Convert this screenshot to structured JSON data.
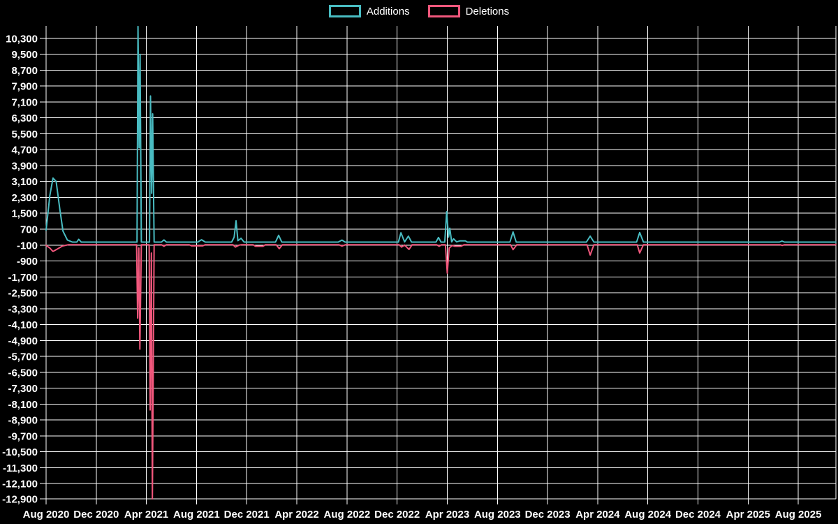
{
  "legend": {
    "items": [
      {
        "label": "Additions",
        "color": "#49bcc2"
      },
      {
        "label": "Deletions",
        "color": "#f1577c"
      }
    ]
  },
  "chart_data": {
    "type": "line",
    "title": "",
    "background_color": "#000000",
    "grid_color": "#ffffff",
    "text_color": "#ffffff",
    "grid": true,
    "legend_position": "top-center",
    "x_axis": {
      "tick_labels": [
        "Aug 2020",
        "Dec 2020",
        "Apr 2021",
        "Aug 2021",
        "Dec 2021",
        "Apr 2022",
        "Aug 2022",
        "Dec 2022",
        "Apr 2023",
        "Aug 2023",
        "Dec 2023",
        "Apr 2024",
        "Aug 2024",
        "Dec 2024",
        "Apr 2025",
        "Aug 2025"
      ],
      "tick_interval_months": 4,
      "range_months": [
        0,
        63
      ]
    },
    "y_axis": {
      "tick_labels": [
        "10,300",
        "9,500",
        "8,700",
        "7,900",
        "7,100",
        "6,300",
        "5,500",
        "4,700",
        "3,900",
        "3,100",
        "2,300",
        "1,500",
        "700",
        "-100",
        "-900",
        "-1,700",
        "-2,500",
        "-3,300",
        "-4,100",
        "-4,900",
        "-5,700",
        "-6,500",
        "-7,300",
        "-8,100",
        "-8,900",
        "-9,700",
        "-10,500",
        "-11,300",
        "-12,100",
        "-12,900"
      ],
      "tick_step": 800,
      "visible_value_range": [
        -12870,
        10930
      ]
    },
    "series": [
      {
        "name": "Additions",
        "color": "#49bcc2",
        "points": [
          [
            0,
            650
          ],
          [
            0.3,
            2400
          ],
          [
            0.55,
            3270
          ],
          [
            0.8,
            3100
          ],
          [
            1.1,
            1700
          ],
          [
            1.35,
            600
          ],
          [
            1.7,
            150
          ],
          [
            2.1,
            50
          ],
          [
            2.45,
            50
          ],
          [
            2.6,
            190
          ],
          [
            2.8,
            50
          ],
          [
            7.25,
            50
          ],
          [
            7.33,
            10900
          ],
          [
            7.42,
            4800
          ],
          [
            7.5,
            9500
          ],
          [
            7.6,
            50
          ],
          [
            8.25,
            50
          ],
          [
            8.33,
            7400
          ],
          [
            8.42,
            2500
          ],
          [
            8.5,
            6500
          ],
          [
            8.62,
            50
          ],
          [
            9.2,
            50
          ],
          [
            9.4,
            160
          ],
          [
            9.6,
            50
          ],
          [
            12.1,
            50
          ],
          [
            12.4,
            170
          ],
          [
            12.7,
            50
          ],
          [
            14.8,
            50
          ],
          [
            15.0,
            300
          ],
          [
            15.15,
            1120
          ],
          [
            15.3,
            120
          ],
          [
            15.55,
            240
          ],
          [
            15.8,
            50
          ],
          [
            18.3,
            50
          ],
          [
            18.55,
            390
          ],
          [
            18.8,
            50
          ],
          [
            23.3,
            50
          ],
          [
            23.6,
            150
          ],
          [
            23.85,
            50
          ],
          [
            28.1,
            50
          ],
          [
            28.3,
            520
          ],
          [
            28.6,
            60
          ],
          [
            28.9,
            350
          ],
          [
            29.15,
            50
          ],
          [
            31.1,
            50
          ],
          [
            31.3,
            280
          ],
          [
            31.5,
            50
          ],
          [
            31.8,
            50
          ],
          [
            31.95,
            1580
          ],
          [
            32.1,
            300
          ],
          [
            32.2,
            750
          ],
          [
            32.35,
            60
          ],
          [
            32.5,
            210
          ],
          [
            32.75,
            60
          ],
          [
            33.0,
            110
          ],
          [
            33.45,
            110
          ],
          [
            33.6,
            50
          ],
          [
            37.0,
            50
          ],
          [
            37.25,
            560
          ],
          [
            37.5,
            50
          ],
          [
            43.1,
            50
          ],
          [
            43.4,
            350
          ],
          [
            43.7,
            50
          ],
          [
            47.1,
            50
          ],
          [
            47.35,
            530
          ],
          [
            47.65,
            50
          ],
          [
            58.5,
            50
          ],
          [
            58.7,
            100
          ],
          [
            58.9,
            50
          ],
          [
            63,
            50
          ]
        ]
      },
      {
        "name": "Deletions",
        "color": "#f1577c",
        "points": [
          [
            0,
            -120
          ],
          [
            0.3,
            -250
          ],
          [
            0.55,
            -420
          ],
          [
            0.9,
            -300
          ],
          [
            1.3,
            -150
          ],
          [
            1.8,
            -80
          ],
          [
            7.22,
            -80
          ],
          [
            7.3,
            -3780
          ],
          [
            7.4,
            -250
          ],
          [
            7.48,
            -5340
          ],
          [
            7.6,
            -80
          ],
          [
            8.22,
            -80
          ],
          [
            8.3,
            -8400
          ],
          [
            8.4,
            -500
          ],
          [
            8.48,
            -12870
          ],
          [
            8.62,
            -80
          ],
          [
            9.2,
            -80
          ],
          [
            9.4,
            -160
          ],
          [
            9.6,
            -80
          ],
          [
            11.4,
            -80
          ],
          [
            11.6,
            -140
          ],
          [
            12.5,
            -140
          ],
          [
            12.7,
            -80
          ],
          [
            14.9,
            -80
          ],
          [
            15.1,
            -200
          ],
          [
            15.4,
            -100
          ],
          [
            15.6,
            -80
          ],
          [
            16.5,
            -80
          ],
          [
            16.7,
            -160
          ],
          [
            17.3,
            -160
          ],
          [
            17.5,
            -80
          ],
          [
            18.35,
            -80
          ],
          [
            18.6,
            -280
          ],
          [
            18.85,
            -80
          ],
          [
            23.35,
            -80
          ],
          [
            23.6,
            -150
          ],
          [
            23.9,
            -80
          ],
          [
            28.15,
            -80
          ],
          [
            28.35,
            -200
          ],
          [
            28.6,
            -100
          ],
          [
            28.95,
            -320
          ],
          [
            29.2,
            -80
          ],
          [
            31.15,
            -80
          ],
          [
            31.35,
            -160
          ],
          [
            31.55,
            -80
          ],
          [
            31.85,
            -80
          ],
          [
            32.0,
            -1510
          ],
          [
            32.15,
            -250
          ],
          [
            32.4,
            -120
          ],
          [
            32.6,
            -160
          ],
          [
            33.1,
            -160
          ],
          [
            33.35,
            -80
          ],
          [
            37.05,
            -80
          ],
          [
            37.25,
            -330
          ],
          [
            37.55,
            -80
          ],
          [
            43.15,
            -80
          ],
          [
            43.4,
            -600
          ],
          [
            43.7,
            -80
          ],
          [
            47.15,
            -80
          ],
          [
            47.35,
            -500
          ],
          [
            47.65,
            -80
          ],
          [
            58.55,
            -80
          ],
          [
            58.72,
            -120
          ],
          [
            58.9,
            -80
          ],
          [
            63,
            -80
          ]
        ]
      }
    ]
  }
}
